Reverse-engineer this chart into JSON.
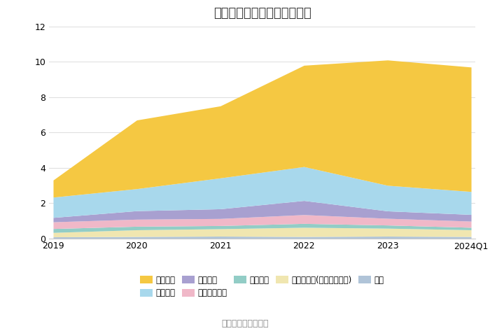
{
  "title": "历年主要负债堆积图（亿元）",
  "source": "数据来源：恒生聚源",
  "x_labels": [
    "2019",
    "2020",
    "2021",
    "2022",
    "2023",
    "2024Q1"
  ],
  "series": [
    {
      "name": "其它",
      "color": "#b0c4d8",
      "values": [
        0.08,
        0.1,
        0.12,
        0.1,
        0.12,
        0.1
      ]
    },
    {
      "name": "其他应付款(含利息和股利)",
      "color": "#f0e6b0",
      "values": [
        0.25,
        0.38,
        0.42,
        0.52,
        0.45,
        0.38
      ]
    },
    {
      "name": "应交税费",
      "color": "#92cdc6",
      "values": [
        0.22,
        0.2,
        0.18,
        0.22,
        0.18,
        0.14
      ]
    },
    {
      "name": "应付职工薪酬",
      "color": "#f0b8c8",
      "values": [
        0.38,
        0.4,
        0.4,
        0.5,
        0.38,
        0.35
      ]
    },
    {
      "name": "合同负债",
      "color": "#a8a0d0",
      "values": [
        0.25,
        0.48,
        0.55,
        0.8,
        0.42,
        0.38
      ]
    },
    {
      "name": "应付账款",
      "color": "#a8d8ec",
      "values": [
        1.15,
        1.25,
        1.75,
        1.92,
        1.45,
        1.3
      ]
    },
    {
      "name": "短期借款",
      "color": "#f5c842",
      "values": [
        0.97,
        3.89,
        4.08,
        5.74,
        7.1,
        7.05
      ]
    }
  ],
  "legend_order": [
    6,
    5,
    4,
    3,
    2,
    1,
    0
  ],
  "legend_row1": [
    "短期借款",
    "应付账款",
    "合同负债",
    "应付职工薪酬",
    "应交税费"
  ],
  "legend_row2": [
    "其他应付款(含利息和股利)",
    "其它"
  ],
  "ylim": [
    0,
    12
  ],
  "yticks": [
    0,
    2,
    4,
    6,
    8,
    10,
    12
  ],
  "figsize": [
    7.0,
    4.73
  ],
  "dpi": 100,
  "bg_color": "#ffffff",
  "grid_color": "#e0e0e0",
  "title_fontsize": 13,
  "legend_fontsize": 8.5,
  "tick_fontsize": 9,
  "source_fontsize": 9
}
